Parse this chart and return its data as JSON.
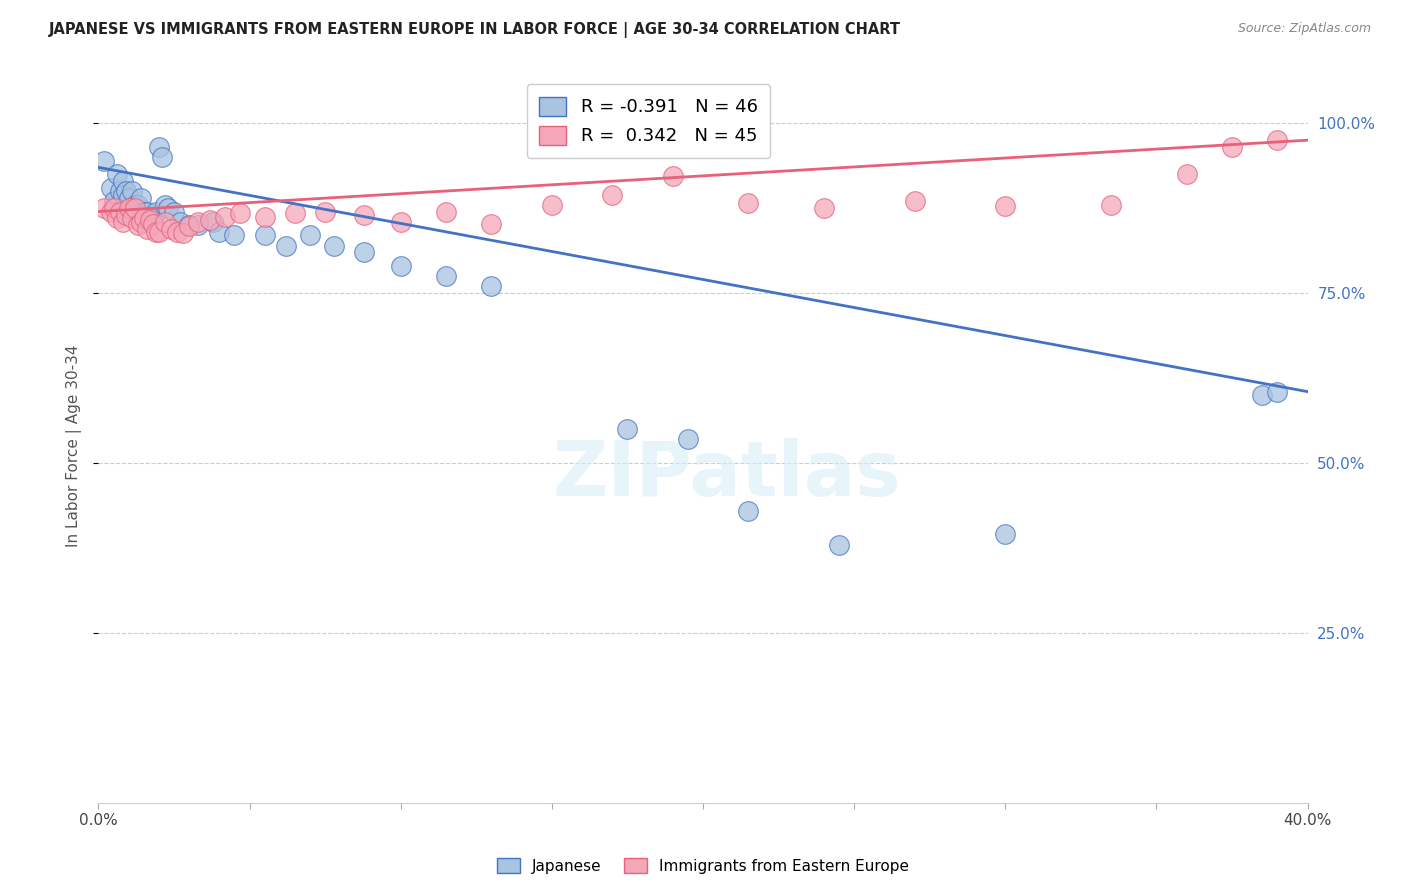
{
  "title": "JAPANESE VS IMMIGRANTS FROM EASTERN EUROPE IN LABOR FORCE | AGE 30-34 CORRELATION CHART",
  "source": "Source: ZipAtlas.com",
  "ylabel": "In Labor Force | Age 30-34",
  "xlim": [
    0.0,
    0.4
  ],
  "ylim": [
    0.0,
    1.05
  ],
  "blue_R": -0.391,
  "blue_N": 46,
  "pink_R": 0.342,
  "pink_N": 45,
  "blue_color": "#a8c4e0",
  "pink_color": "#f4a7b9",
  "blue_line_color": "#4472c4",
  "pink_line_color": "#e8607a",
  "legend_label_blue": "Japanese",
  "legend_label_pink": "Immigrants from Eastern Europe",
  "watermark_text": "ZIPatlas",
  "blue_line_y0": 0.935,
  "blue_line_y1": 0.605,
  "pink_line_y0": 0.87,
  "pink_line_y1": 0.975,
  "blue_x": [
    0.002,
    0.004,
    0.005,
    0.006,
    0.007,
    0.008,
    0.008,
    0.009,
    0.01,
    0.01,
    0.011,
    0.012,
    0.013,
    0.013,
    0.014,
    0.015,
    0.016,
    0.017,
    0.018,
    0.019,
    0.02,
    0.021,
    0.022,
    0.023,
    0.025,
    0.027,
    0.03,
    0.033,
    0.038,
    0.04,
    0.045,
    0.055,
    0.062,
    0.07,
    0.078,
    0.088,
    0.1,
    0.115,
    0.13,
    0.175,
    0.195,
    0.215,
    0.245,
    0.3,
    0.385,
    0.39
  ],
  "blue_y": [
    0.945,
    0.905,
    0.885,
    0.925,
    0.9,
    0.915,
    0.895,
    0.9,
    0.89,
    0.87,
    0.9,
    0.88,
    0.865,
    0.88,
    0.89,
    0.87,
    0.87,
    0.86,
    0.855,
    0.87,
    0.965,
    0.95,
    0.88,
    0.875,
    0.87,
    0.855,
    0.85,
    0.85,
    0.855,
    0.84,
    0.835,
    0.835,
    0.82,
    0.835,
    0.82,
    0.81,
    0.79,
    0.775,
    0.76,
    0.55,
    0.535,
    0.43,
    0.38,
    0.395,
    0.6,
    0.605
  ],
  "pink_x": [
    0.002,
    0.004,
    0.005,
    0.006,
    0.007,
    0.008,
    0.009,
    0.01,
    0.011,
    0.012,
    0.013,
    0.014,
    0.015,
    0.016,
    0.017,
    0.018,
    0.019,
    0.02,
    0.022,
    0.024,
    0.026,
    0.028,
    0.03,
    0.033,
    0.037,
    0.042,
    0.047,
    0.055,
    0.065,
    0.075,
    0.088,
    0.1,
    0.115,
    0.13,
    0.15,
    0.17,
    0.19,
    0.215,
    0.24,
    0.27,
    0.3,
    0.335,
    0.36,
    0.375,
    0.39
  ],
  "pink_y": [
    0.875,
    0.87,
    0.875,
    0.86,
    0.87,
    0.855,
    0.865,
    0.875,
    0.86,
    0.875,
    0.85,
    0.855,
    0.86,
    0.845,
    0.858,
    0.852,
    0.84,
    0.84,
    0.855,
    0.845,
    0.84,
    0.838,
    0.848,
    0.855,
    0.858,
    0.862,
    0.868,
    0.862,
    0.868,
    0.87,
    0.865,
    0.855,
    0.87,
    0.852,
    0.88,
    0.895,
    0.922,
    0.882,
    0.875,
    0.885,
    0.878,
    0.88,
    0.925,
    0.965,
    0.975
  ]
}
